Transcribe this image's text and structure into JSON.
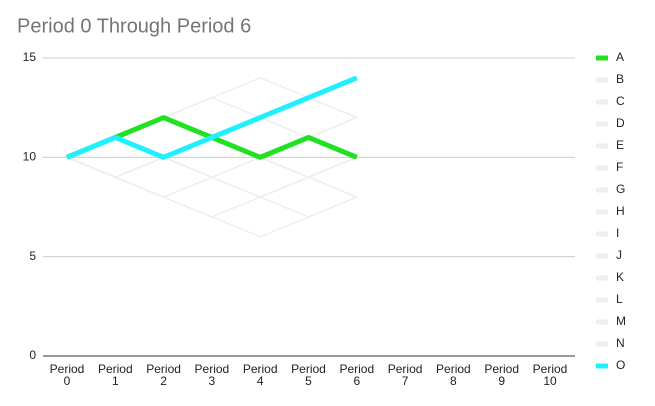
{
  "chart_data": {
    "type": "line",
    "title": "Period 0 Through Period 6",
    "categories": [
      "Period 0",
      "Period 1",
      "Period 2",
      "Period 3",
      "Period 4",
      "Period 5",
      "Period 6",
      "Period 7",
      "Period 8",
      "Period 9",
      "Period 10"
    ],
    "ylim": [
      0,
      15
    ],
    "yticks": [
      0,
      5,
      10,
      15
    ],
    "grid": true,
    "legend": "right",
    "series": [
      {
        "name": "A",
        "color": "#22e022",
        "values": [
          10,
          11,
          12,
          11,
          10,
          11,
          10,
          null,
          null,
          null,
          null
        ]
      },
      {
        "name": "B",
        "color": "#eeeeee",
        "values": [
          10,
          11,
          12,
          13,
          12,
          13,
          12,
          null,
          null,
          null,
          null
        ]
      },
      {
        "name": "C",
        "color": "#eeeeee",
        "values": [
          10,
          9,
          8,
          7,
          6,
          7,
          8,
          null,
          null,
          null,
          null
        ]
      },
      {
        "name": "D",
        "color": "#eeeeee",
        "values": [
          10,
          9,
          10,
          9,
          8,
          9,
          10,
          null,
          null,
          null,
          null
        ]
      },
      {
        "name": "E",
        "color": "#eeeeee",
        "values": [
          10,
          9,
          8,
          9,
          10,
          9,
          8,
          null,
          null,
          null,
          null
        ]
      },
      {
        "name": "F",
        "color": "#eeeeee",
        "values": [
          10,
          11,
          10,
          9,
          8,
          7,
          8,
          null,
          null,
          null,
          null
        ]
      },
      {
        "name": "G",
        "color": "#eeeeee",
        "values": [
          10,
          9,
          10,
          11,
          10,
          9,
          10,
          null,
          null,
          null,
          null
        ]
      },
      {
        "name": "H",
        "color": "#eeeeee",
        "values": [
          10,
          11,
          12,
          11,
          12,
          11,
          12,
          null,
          null,
          null,
          null
        ]
      },
      {
        "name": "I",
        "color": "#eeeeee",
        "values": [
          10,
          9,
          8,
          9,
          8,
          9,
          10,
          null,
          null,
          null,
          null
        ]
      },
      {
        "name": "J",
        "color": "#eeeeee",
        "values": [
          10,
          11,
          10,
          9,
          10,
          11,
          12,
          null,
          null,
          null,
          null
        ]
      },
      {
        "name": "K",
        "color": "#eeeeee",
        "values": [
          10,
          9,
          10,
          11,
          12,
          11,
          10,
          null,
          null,
          null,
          null
        ]
      },
      {
        "name": "L",
        "color": "#eeeeee",
        "values": [
          10,
          11,
          10,
          11,
          10,
          9,
          8,
          null,
          null,
          null,
          null
        ]
      },
      {
        "name": "M",
        "color": "#eeeeee",
        "values": [
          10,
          9,
          8,
          7,
          8,
          9,
          10,
          null,
          null,
          null,
          null
        ]
      },
      {
        "name": "N",
        "color": "#eeeeee",
        "values": [
          10,
          11,
          12,
          13,
          14,
          13,
          12,
          null,
          null,
          null,
          null
        ]
      },
      {
        "name": "O",
        "color": "#1ff0ff",
        "values": [
          10,
          11,
          10,
          11,
          12,
          13,
          14,
          null,
          null,
          null,
          null
        ]
      }
    ]
  }
}
